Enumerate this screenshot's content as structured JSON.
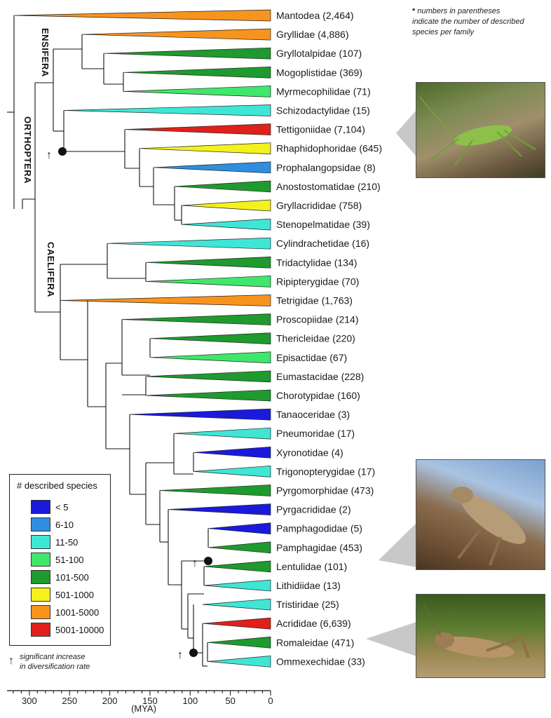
{
  "note": {
    "asterisk": "*",
    "line1": "numbers in parentheses",
    "line2": "indicate the number of described",
    "line3": "species per family"
  },
  "clades": {
    "ensifera": "ENSIFERA",
    "orthoptera": "ORTHOPTERA",
    "caelifera": "CAELIFERA"
  },
  "axis": {
    "unit": "(MYA)",
    "ticks": [
      "300",
      "250",
      "200",
      "150",
      "100",
      "50",
      "0"
    ]
  },
  "legend": {
    "title": "# described species",
    "items": [
      {
        "label": "< 5",
        "color": "#1a1adc"
      },
      {
        "label": "6-10",
        "color": "#2f8ee0"
      },
      {
        "label": "11-50",
        "color": "#3fe6d6"
      },
      {
        "label": "51-100",
        "color": "#3fe86a"
      },
      {
        "label": "101-500",
        "color": "#1f9a2e"
      },
      {
        "label": "501-1000",
        "color": "#f4f11c"
      },
      {
        "label": "1001-5000",
        "color": "#f7941d"
      },
      {
        "label": "5001-10000",
        "color": "#e0201a"
      }
    ]
  },
  "significance": {
    "arrow": "↑",
    "line1": "significant increase",
    "line2": "in diversification rate"
  },
  "taxa": [
    {
      "name": "Mantodea (2,464)",
      "color": "#f7941d"
    },
    {
      "name": "Gryllidae (4,886)",
      "color": "#f7941d"
    },
    {
      "name": "Gryllotalpidae (107)",
      "color": "#1f9a2e"
    },
    {
      "name": "Mogoplistidae (369)",
      "color": "#1f9a2e"
    },
    {
      "name": "Myrmecophilidae (71)",
      "color": "#3fe86a"
    },
    {
      "name": "Schizodactylidae (15)",
      "color": "#3fe6d6"
    },
    {
      "name": "Tettigoniidae (7,104)",
      "color": "#e0201a"
    },
    {
      "name": "Rhaphidophoridae (645)",
      "color": "#f4f11c"
    },
    {
      "name": "Prophalangopsidae (8)",
      "color": "#2f8ee0"
    },
    {
      "name": "Anostostomatidae (210)",
      "color": "#1f9a2e"
    },
    {
      "name": "Gryllacrididae (758)",
      "color": "#f4f11c"
    },
    {
      "name": "Stenopelmatidae (39)",
      "color": "#3fe6d6"
    },
    {
      "name": "Cylindrachetidae (16)",
      "color": "#3fe6d6"
    },
    {
      "name": "Tridactylidae (134)",
      "color": "#1f9a2e"
    },
    {
      "name": "Ripipterygidae (70)",
      "color": "#3fe86a"
    },
    {
      "name": "Tetrigidae (1,763)",
      "color": "#f7941d"
    },
    {
      "name": "Proscopiidae (214)",
      "color": "#1f9a2e"
    },
    {
      "name": "Thericleidae (220)",
      "color": "#1f9a2e"
    },
    {
      "name": "Episactidae (67)",
      "color": "#3fe86a"
    },
    {
      "name": "Eumastacidae (228)",
      "color": "#1f9a2e"
    },
    {
      "name": "Chorotypidae (160)",
      "color": "#1f9a2e"
    },
    {
      "name": "Tanaoceridae (3)",
      "color": "#1a1adc"
    },
    {
      "name": "Pneumoridae (17)",
      "color": "#3fe6d6"
    },
    {
      "name": "Xyronotidae (4)",
      "color": "#1a1adc"
    },
    {
      "name": "Trigonopterygidae (17)",
      "color": "#3fe6d6"
    },
    {
      "name": "Pyrgomorphidae (473)",
      "color": "#1f9a2e"
    },
    {
      "name": "Pyrgacrididae (2)",
      "color": "#1a1adc"
    },
    {
      "name": "Pamphagodidae (5)",
      "color": "#1a1adc"
    },
    {
      "name": "Pamphagidae (453)",
      "color": "#1f9a2e"
    },
    {
      "name": "Lentulidae (101)",
      "color": "#1f9a2e"
    },
    {
      "name": "Lithidiidae (13)",
      "color": "#3fe6d6"
    },
    {
      "name": "Tristiridae (25)",
      "color": "#3fe6d6"
    },
    {
      "name": "Acrididae (6,639)",
      "color": "#e0201a"
    },
    {
      "name": "Romaleidae (471)",
      "color": "#1f9a2e"
    },
    {
      "name": "Ommexechidae (33)",
      "color": "#3fe6d6"
    }
  ],
  "photos": {
    "katydid": "katydid-photo",
    "grasshopper1": "grasshopper-photo",
    "grasshopper2": "grasshopper-photo"
  }
}
